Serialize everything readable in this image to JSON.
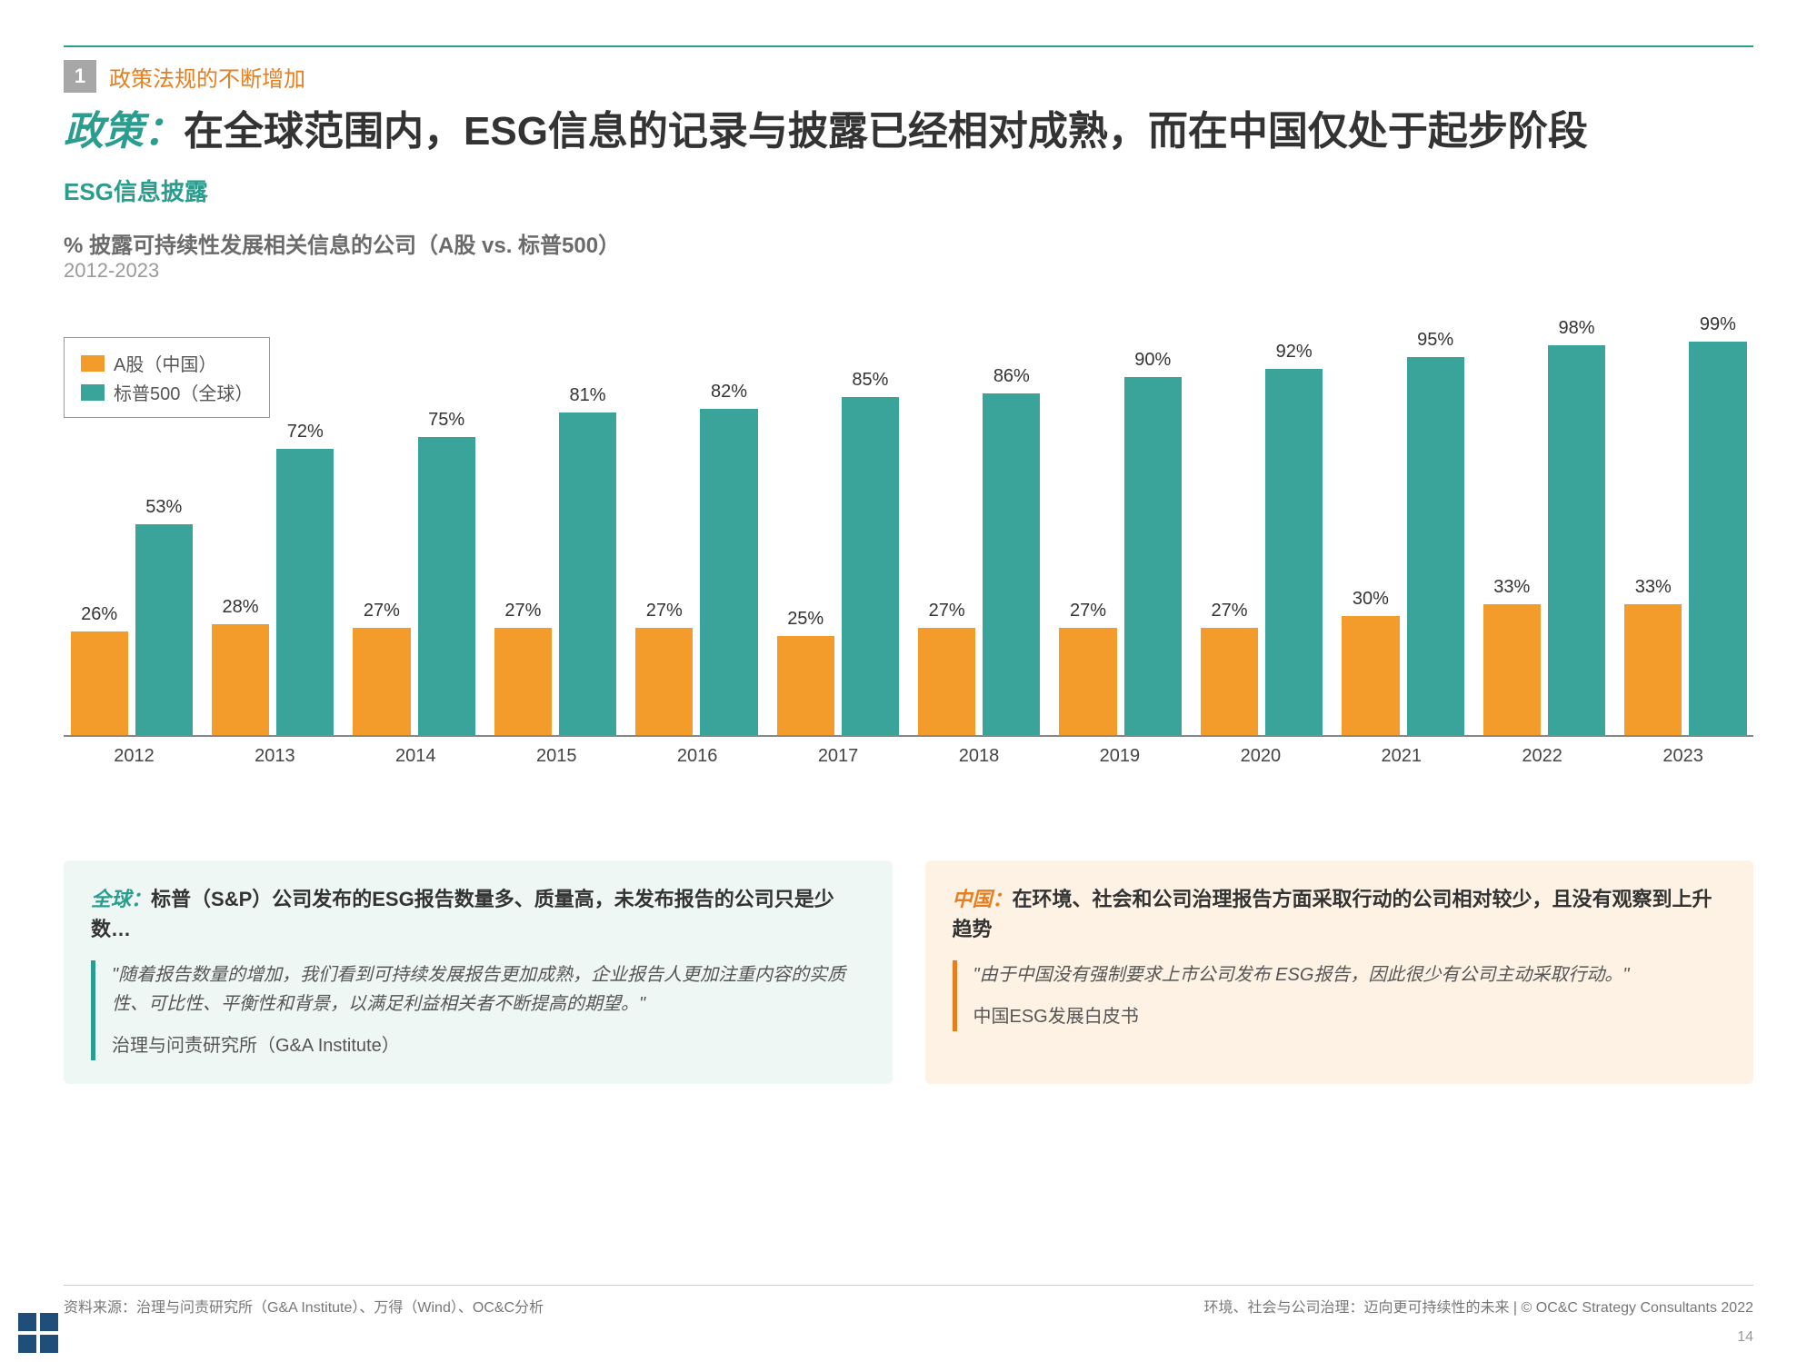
{
  "section": {
    "number": "1",
    "label": "政策法规的不断增加"
  },
  "title": {
    "lead": "政策：",
    "rest": "在全球范围内，ESG信息的记录与披露已经相对成熟，而在中国仅处于起步阶段"
  },
  "subtitle": "ESG信息披露",
  "chart": {
    "type": "bar",
    "caption": "% 披露可持续性发展相关信息的公司（A股 vs. 标普500）",
    "subcaption": "2012-2023",
    "legend": [
      {
        "label": "A股（中国）",
        "color": "#f39c2c"
      },
      {
        "label": "标普500（全球）",
        "color": "#3aa39a"
      }
    ],
    "categories": [
      "2012",
      "2013",
      "2014",
      "2015",
      "2016",
      "2017",
      "2018",
      "2019",
      "2020",
      "2021",
      "2022",
      "2023"
    ],
    "series": [
      {
        "name": "A股（中国）",
        "color": "#f39c2c",
        "values": [
          26,
          28,
          27,
          27,
          27,
          25,
          27,
          27,
          27,
          30,
          33,
          33
        ]
      },
      {
        "name": "标普500（全球）",
        "color": "#3aa39a",
        "values": [
          53,
          72,
          75,
          81,
          82,
          85,
          86,
          90,
          92,
          95,
          98,
          99
        ]
      }
    ],
    "y_max": 100,
    "label_fontsize": 20,
    "axis_color": "#888888",
    "background": "#ffffff"
  },
  "notes": {
    "global": {
      "tag": "全球：",
      "head": "标普（S&P）公司发布的ESG报告数量多、质量高，未发布报告的公司只是少数…",
      "quote": "\"随着报告数量的增加，我们看到可持续发展报告更加成熟，企业报告人更加注重内容的实质性、可比性、平衡性和背景，以满足利益相关者不断提高的期望。\"",
      "source": "治理与问责研究所（G&A Institute）",
      "accent": "#2a9d8f",
      "bg": "#eef7f4"
    },
    "china": {
      "tag": "中国：",
      "head": "在环境、社会和公司治理报告方面采取行动的公司相对较少，且没有观察到上升趋势",
      "quote": "\"由于中国没有强制要求上市公司发布 ESG报告，因此很少有公司主动采取行动。\"",
      "source": "中国ESG发展白皮书",
      "accent": "#e67e22",
      "bg": "#fdf2e4"
    }
  },
  "footer": {
    "left": "资料来源：治理与问责研究所（G&A Institute）、万得（Wind）、OC&C分析",
    "right": "环境、社会与公司治理：迈向更可持续性的未来  |  © OC&C Strategy Consultants 2022",
    "page": "14"
  }
}
